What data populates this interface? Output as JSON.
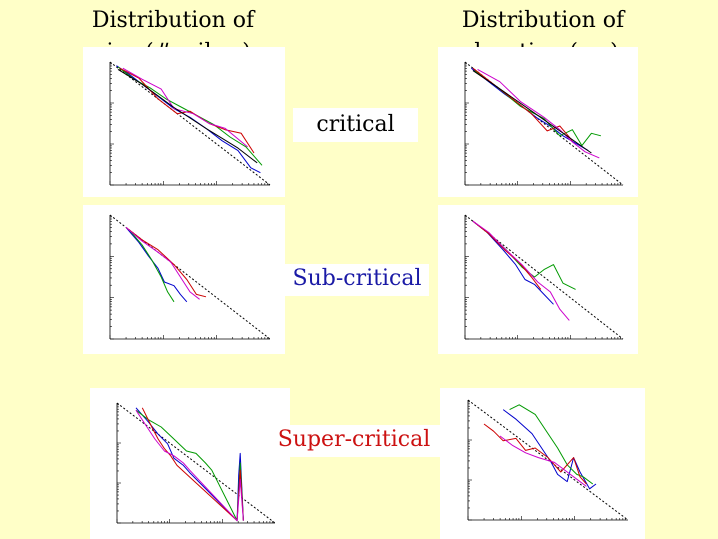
{
  "headings": {
    "size": [
      "Distribution of",
      "size (#spikes)"
    ],
    "duration": [
      "Distribution of",
      "duration (ms)"
    ]
  },
  "regimes": [
    {
      "label": "critical",
      "color": "#000000"
    },
    {
      "label": "Sub-critical",
      "color": "#1a1aa6"
    },
    {
      "label": "Super-critical",
      "color": "#cc1111"
    }
  ],
  "colors": {
    "background": "#ffffc8",
    "series": [
      "#0000cc",
      "#009900",
      "#cc0000",
      "#cc00cc",
      "#000000"
    ],
    "reference_line": "#000000"
  },
  "chart_data": [
    {
      "type": "line",
      "regime": "critical",
      "quantity": "size",
      "scale": "log-log",
      "axes_labeled": false,
      "reference": {
        "x": [
          0,
          1
        ],
        "y": [
          1,
          0
        ]
      },
      "series": [
        {
          "color": "#0000cc",
          "x": [
            0.04,
            0.12,
            0.2,
            0.3,
            0.4,
            0.5,
            0.6,
            0.7,
            0.8,
            0.88,
            0.94
          ],
          "y": [
            0.97,
            0.9,
            0.82,
            0.72,
            0.62,
            0.55,
            0.46,
            0.36,
            0.28,
            0.14,
            0.1
          ]
        },
        {
          "color": "#009900",
          "x": [
            0.05,
            0.15,
            0.25,
            0.35,
            0.45,
            0.55,
            0.65,
            0.75,
            0.85,
            0.95
          ],
          "y": [
            0.96,
            0.86,
            0.79,
            0.7,
            0.63,
            0.56,
            0.49,
            0.39,
            0.31,
            0.16
          ]
        },
        {
          "color": "#cc0000",
          "x": [
            0.06,
            0.18,
            0.3,
            0.42,
            0.5,
            0.62,
            0.72,
            0.82,
            0.9
          ],
          "y": [
            0.95,
            0.87,
            0.7,
            0.58,
            0.6,
            0.5,
            0.45,
            0.42,
            0.26
          ]
        },
        {
          "color": "#cc00cc",
          "x": [
            0.08,
            0.2,
            0.32,
            0.4,
            0.52,
            0.62,
            0.72,
            0.86
          ],
          "y": [
            0.95,
            0.86,
            0.78,
            0.62,
            0.58,
            0.5,
            0.46,
            0.31
          ]
        },
        {
          "color": "#000000",
          "x": [
            0.05,
            0.2,
            0.4,
            0.6,
            0.8,
            0.92
          ],
          "y": [
            0.94,
            0.82,
            0.63,
            0.46,
            0.3,
            0.18
          ]
        }
      ]
    },
    {
      "type": "line",
      "regime": "critical",
      "quantity": "duration",
      "scale": "log-log",
      "axes_labeled": false,
      "reference": {
        "x": [
          0,
          1
        ],
        "y": [
          1,
          0
        ]
      },
      "series": [
        {
          "color": "#0000cc",
          "x": [
            0.04,
            0.14,
            0.25,
            0.35,
            0.45,
            0.55,
            0.62,
            0.7,
            0.78
          ],
          "y": [
            0.95,
            0.85,
            0.74,
            0.65,
            0.55,
            0.47,
            0.4,
            0.34,
            0.28
          ]
        },
        {
          "color": "#009900",
          "x": [
            0.06,
            0.2,
            0.35,
            0.5,
            0.6,
            0.68,
            0.74,
            0.8,
            0.86
          ],
          "y": [
            0.93,
            0.8,
            0.64,
            0.54,
            0.4,
            0.45,
            0.32,
            0.42,
            0.4
          ]
        },
        {
          "color": "#cc0000",
          "x": [
            0.05,
            0.18,
            0.3,
            0.42,
            0.52,
            0.6,
            0.68
          ],
          "y": [
            0.95,
            0.82,
            0.7,
            0.58,
            0.44,
            0.48,
            0.36
          ]
        },
        {
          "color": "#cc00cc",
          "x": [
            0.08,
            0.22,
            0.35,
            0.5,
            0.6,
            0.68,
            0.76,
            0.85
          ],
          "y": [
            0.94,
            0.84,
            0.68,
            0.55,
            0.45,
            0.35,
            0.27,
            0.22
          ]
        },
        {
          "color": "#000000",
          "x": [
            0.05,
            0.2,
            0.4,
            0.6,
            0.8
          ],
          "y": [
            0.93,
            0.8,
            0.62,
            0.44,
            0.26
          ]
        }
      ]
    },
    {
      "type": "line",
      "regime": "sub-critical",
      "quantity": "size",
      "scale": "log-log",
      "axes_labeled": false,
      "reference": {
        "x": [
          0,
          1
        ],
        "y": [
          1,
          0
        ]
      },
      "series": [
        {
          "color": "#0000cc",
          "x": [
            0.1,
            0.18,
            0.24,
            0.3,
            0.34,
            0.4,
            0.44,
            0.48
          ],
          "y": [
            0.9,
            0.78,
            0.67,
            0.57,
            0.46,
            0.43,
            0.36,
            0.3
          ]
        },
        {
          "color": "#009900",
          "x": [
            0.12,
            0.2,
            0.26,
            0.32,
            0.36,
            0.4
          ],
          "y": [
            0.88,
            0.76,
            0.64,
            0.5,
            0.38,
            0.3
          ]
        },
        {
          "color": "#cc0000",
          "x": [
            0.1,
            0.2,
            0.3,
            0.4,
            0.48,
            0.54,
            0.6
          ],
          "y": [
            0.9,
            0.8,
            0.72,
            0.6,
            0.48,
            0.36,
            0.34
          ]
        },
        {
          "color": "#cc00cc",
          "x": [
            0.1,
            0.2,
            0.3,
            0.38,
            0.44,
            0.5,
            0.56
          ],
          "y": [
            0.9,
            0.79,
            0.7,
            0.62,
            0.5,
            0.38,
            0.32
          ]
        }
      ]
    },
    {
      "type": "line",
      "regime": "sub-critical",
      "quantity": "duration",
      "scale": "log-log",
      "axes_labeled": false,
      "reference": {
        "x": [
          0,
          1
        ],
        "y": [
          1,
          0
        ]
      },
      "series": [
        {
          "color": "#0000cc",
          "x": [
            0.05,
            0.14,
            0.24,
            0.32,
            0.38,
            0.44,
            0.5,
            0.56
          ],
          "y": [
            0.95,
            0.86,
            0.72,
            0.6,
            0.48,
            0.44,
            0.36,
            0.28
          ]
        },
        {
          "color": "#009900",
          "x": [
            0.06,
            0.16,
            0.26,
            0.36,
            0.44,
            0.5,
            0.56,
            0.62,
            0.7
          ],
          "y": [
            0.94,
            0.84,
            0.72,
            0.58,
            0.5,
            0.56,
            0.6,
            0.45,
            0.4
          ]
        },
        {
          "color": "#cc0000",
          "x": [
            0.05,
            0.15,
            0.25,
            0.34,
            0.42,
            0.48
          ],
          "y": [
            0.95,
            0.85,
            0.72,
            0.62,
            0.5,
            0.4
          ]
        },
        {
          "color": "#cc00cc",
          "x": [
            0.05,
            0.15,
            0.25,
            0.36,
            0.46,
            0.54,
            0.6,
            0.66
          ],
          "y": [
            0.95,
            0.86,
            0.73,
            0.6,
            0.46,
            0.38,
            0.24,
            0.15
          ]
        }
      ]
    },
    {
      "type": "line",
      "regime": "super-critical",
      "quantity": "size",
      "scale": "log-log",
      "axes_labeled": false,
      "reference": {
        "x": [
          0,
          1
        ],
        "y": [
          1,
          0
        ]
      },
      "series": [
        {
          "color": "#0000cc",
          "x": [
            0.12,
            0.2,
            0.26,
            0.32,
            0.36,
            0.42,
            0.46,
            0.76,
            0.77,
            0.78,
            0.79,
            0.8
          ],
          "y": [
            0.96,
            0.84,
            0.74,
            0.66,
            0.54,
            0.48,
            0.42,
            0.02,
            0.4,
            0.58,
            0.3,
            0.02
          ]
        },
        {
          "color": "#009900",
          "x": [
            0.12,
            0.2,
            0.28,
            0.36,
            0.44,
            0.5,
            0.56,
            0.6,
            0.76,
            0.78,
            0.8
          ],
          "y": [
            0.94,
            0.86,
            0.8,
            0.7,
            0.6,
            0.58,
            0.5,
            0.44,
            0.02,
            0.5,
            0.02
          ]
        },
        {
          "color": "#cc0000",
          "x": [
            0.16,
            0.22,
            0.26,
            0.3,
            0.34,
            0.38,
            0.76,
            0.78,
            0.8
          ],
          "y": [
            0.96,
            0.8,
            0.7,
            0.62,
            0.56,
            0.48,
            0.02,
            0.44,
            0.02
          ]
        },
        {
          "color": "#cc00cc",
          "x": [
            0.12,
            0.18,
            0.24,
            0.3,
            0.36,
            0.42,
            0.46,
            0.76,
            0.78,
            0.8
          ],
          "y": [
            0.94,
            0.82,
            0.7,
            0.6,
            0.56,
            0.5,
            0.44,
            0.02,
            0.36,
            0.02
          ]
        }
      ]
    },
    {
      "type": "line",
      "regime": "super-critical",
      "quantity": "duration",
      "scale": "log-log",
      "axes_labeled": false,
      "reference": {
        "x": [
          0,
          1
        ],
        "y": [
          1,
          0
        ]
      },
      "series": [
        {
          "color": "#0000cc",
          "x": [
            0.22,
            0.3,
            0.4,
            0.46,
            0.52,
            0.56,
            0.62,
            0.66,
            0.7,
            0.76,
            0.8
          ],
          "y": [
            0.92,
            0.84,
            0.72,
            0.6,
            0.48,
            0.38,
            0.32,
            0.52,
            0.4,
            0.26,
            0.3
          ]
        },
        {
          "color": "#009900",
          "x": [
            0.26,
            0.32,
            0.42,
            0.5,
            0.56,
            0.62,
            0.68,
            0.72,
            0.78
          ],
          "y": [
            0.92,
            0.96,
            0.88,
            0.72,
            0.6,
            0.46,
            0.38,
            0.36,
            0.3
          ]
        },
        {
          "color": "#cc0000",
          "x": [
            0.1,
            0.16,
            0.22,
            0.3,
            0.36,
            0.42,
            0.5,
            0.58,
            0.66,
            0.7,
            0.74
          ],
          "y": [
            0.8,
            0.74,
            0.66,
            0.68,
            0.58,
            0.6,
            0.52,
            0.4,
            0.52,
            0.36,
            0.3
          ]
        },
        {
          "color": "#cc00cc",
          "x": [
            0.2,
            0.28,
            0.36,
            0.44,
            0.54,
            0.62,
            0.68,
            0.74
          ],
          "y": [
            0.7,
            0.62,
            0.56,
            0.52,
            0.48,
            0.4,
            0.34,
            0.28
          ]
        }
      ]
    }
  ]
}
